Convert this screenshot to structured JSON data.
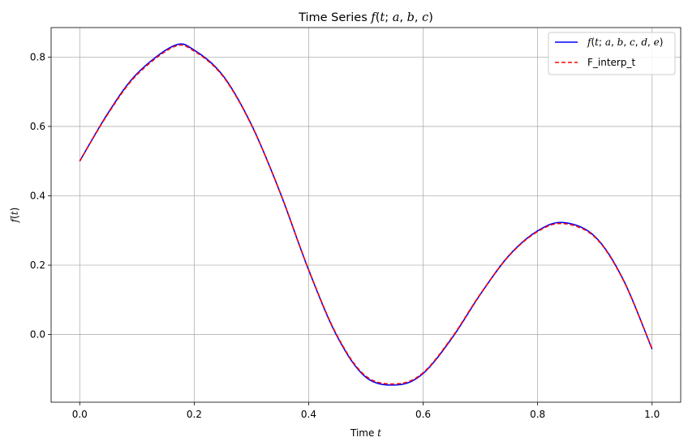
{
  "chart_data": {
    "type": "line",
    "title": "Time Series f(t; a, b, c)",
    "xlabel": "Time t",
    "ylabel": "f(t)",
    "xlim": [
      -0.05,
      1.05
    ],
    "ylim": [
      -0.195,
      0.885
    ],
    "xticks": [
      0.0,
      0.2,
      0.4,
      0.6,
      0.8,
      1.0
    ],
    "xtick_labels": [
      "0.0",
      "0.2",
      "0.4",
      "0.6",
      "0.8",
      "1.0"
    ],
    "yticks": [
      0.0,
      0.2,
      0.4,
      0.6,
      0.8
    ],
    "ytick_labels": [
      "0.0",
      "0.2",
      "0.4",
      "0.6",
      "0.8"
    ],
    "grid": true,
    "legend_position": "top-right",
    "series": [
      {
        "name": "f(t; a, b, c, d, e)",
        "color": "#0000ff",
        "style": "solid",
        "x": [
          0.0,
          0.05,
          0.1,
          0.165,
          0.2,
          0.25,
          0.3,
          0.35,
          0.4,
          0.45,
          0.5,
          0.555,
          0.6,
          0.65,
          0.7,
          0.75,
          0.8,
          0.845,
          0.9,
          0.95,
          1.0
        ],
        "y": [
          0.5,
          0.64,
          0.752,
          0.833,
          0.82,
          0.747,
          0.605,
          0.41,
          0.186,
          -0.006,
          -0.123,
          -0.145,
          -0.112,
          -0.011,
          0.116,
          0.228,
          0.299,
          0.323,
          0.283,
          0.157,
          -0.042
        ]
      },
      {
        "name": "F_interp_t",
        "color": "#ff0000",
        "style": "dashed",
        "x": [
          0.0,
          0.05,
          0.1,
          0.165,
          0.2,
          0.25,
          0.3,
          0.35,
          0.4,
          0.45,
          0.5,
          0.555,
          0.6,
          0.65,
          0.7,
          0.75,
          0.8,
          0.845,
          0.9,
          0.95,
          1.0
        ],
        "y": [
          0.5,
          0.638,
          0.749,
          0.83,
          0.817,
          0.745,
          0.604,
          0.41,
          0.187,
          -0.004,
          -0.12,
          -0.142,
          -0.11,
          -0.009,
          0.117,
          0.227,
          0.297,
          0.32,
          0.281,
          0.156,
          -0.041
        ]
      }
    ]
  }
}
